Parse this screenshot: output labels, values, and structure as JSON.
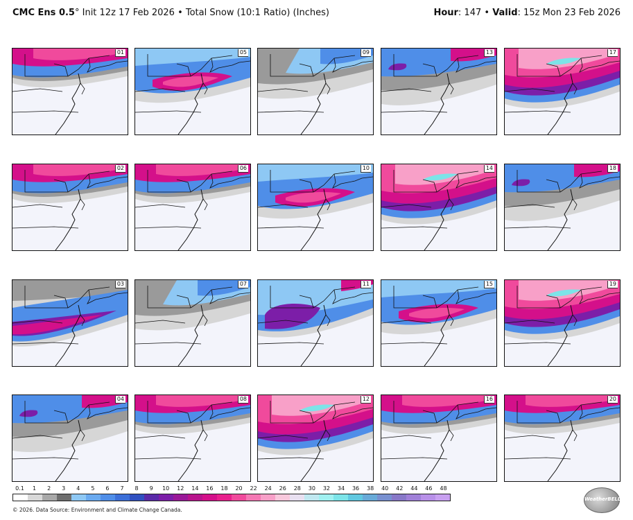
{
  "header": {
    "model": "CMC Ens 0.5",
    "degree": "°",
    "init": " Init 12z 17 Feb 2026",
    "bullet": " • ",
    "product": "Total Snow (10:1 Ratio) (Inches)",
    "hour_label": "Hour",
    "hour_value": ": 147 • ",
    "valid_label": "Valid",
    "valid_value": ": 15z Mon 23 Feb 2026"
  },
  "members": [
    {
      "id": "01",
      "pattern": "north-heavy"
    },
    {
      "id": "05",
      "pattern": "central-band"
    },
    {
      "id": "09",
      "pattern": "light"
    },
    {
      "id": "13",
      "pattern": "light-north"
    },
    {
      "id": "17",
      "pattern": "heavy-wide"
    },
    {
      "id": "02",
      "pattern": "north-heavy"
    },
    {
      "id": "06",
      "pattern": "north-heavy"
    },
    {
      "id": "10",
      "pattern": "central-band"
    },
    {
      "id": "14",
      "pattern": "heavy-wide"
    },
    {
      "id": "18",
      "pattern": "light-north"
    },
    {
      "id": "03",
      "pattern": "south-band"
    },
    {
      "id": "07",
      "pattern": "light"
    },
    {
      "id": "11",
      "pattern": "west-heavy"
    },
    {
      "id": "15",
      "pattern": "central-band"
    },
    {
      "id": "19",
      "pattern": "heavy-wide"
    },
    {
      "id": "04",
      "pattern": "light-north"
    },
    {
      "id": "08",
      "pattern": "north-heavy"
    },
    {
      "id": "12",
      "pattern": "heavy-wide"
    },
    {
      "id": "16",
      "pattern": "north-heavy"
    },
    {
      "id": "20",
      "pattern": "north-heavy"
    }
  ],
  "scale": {
    "labels": [
      "0.1",
      "1",
      "2",
      "3",
      "4",
      "5",
      "6",
      "7",
      "8",
      "9",
      "10",
      "12",
      "14",
      "16",
      "18",
      "20",
      "22",
      "24",
      "26",
      "28",
      "30",
      "32",
      "34",
      "36",
      "38",
      "40",
      "42",
      "44",
      "46",
      "48"
    ],
    "colors": [
      "#ffffff",
      "#d8d8d8",
      "#a8a8a8",
      "#6e6e6e",
      "#8ec8f4",
      "#6aaaf0",
      "#4f8ee8",
      "#3c6fd8",
      "#3050c0",
      "#5a2aa8",
      "#7c1ea8",
      "#9a1898",
      "#b8148c",
      "#d4108a",
      "#e8208c",
      "#f04a9c",
      "#f478b4",
      "#f8a0c8",
      "#f8c8dc",
      "#e8e0f0",
      "#c0e8f0",
      "#a0f0f0",
      "#7ce4e8",
      "#60c8e0",
      "#68aad8",
      "#7890d0",
      "#8878c8",
      "#a080d8",
      "#b890e8",
      "#c8a0f0"
    ]
  },
  "footer": "© 2026. Data Source: Environment and Climate Change Canada.",
  "logo_text": "WeatherBELL"
}
